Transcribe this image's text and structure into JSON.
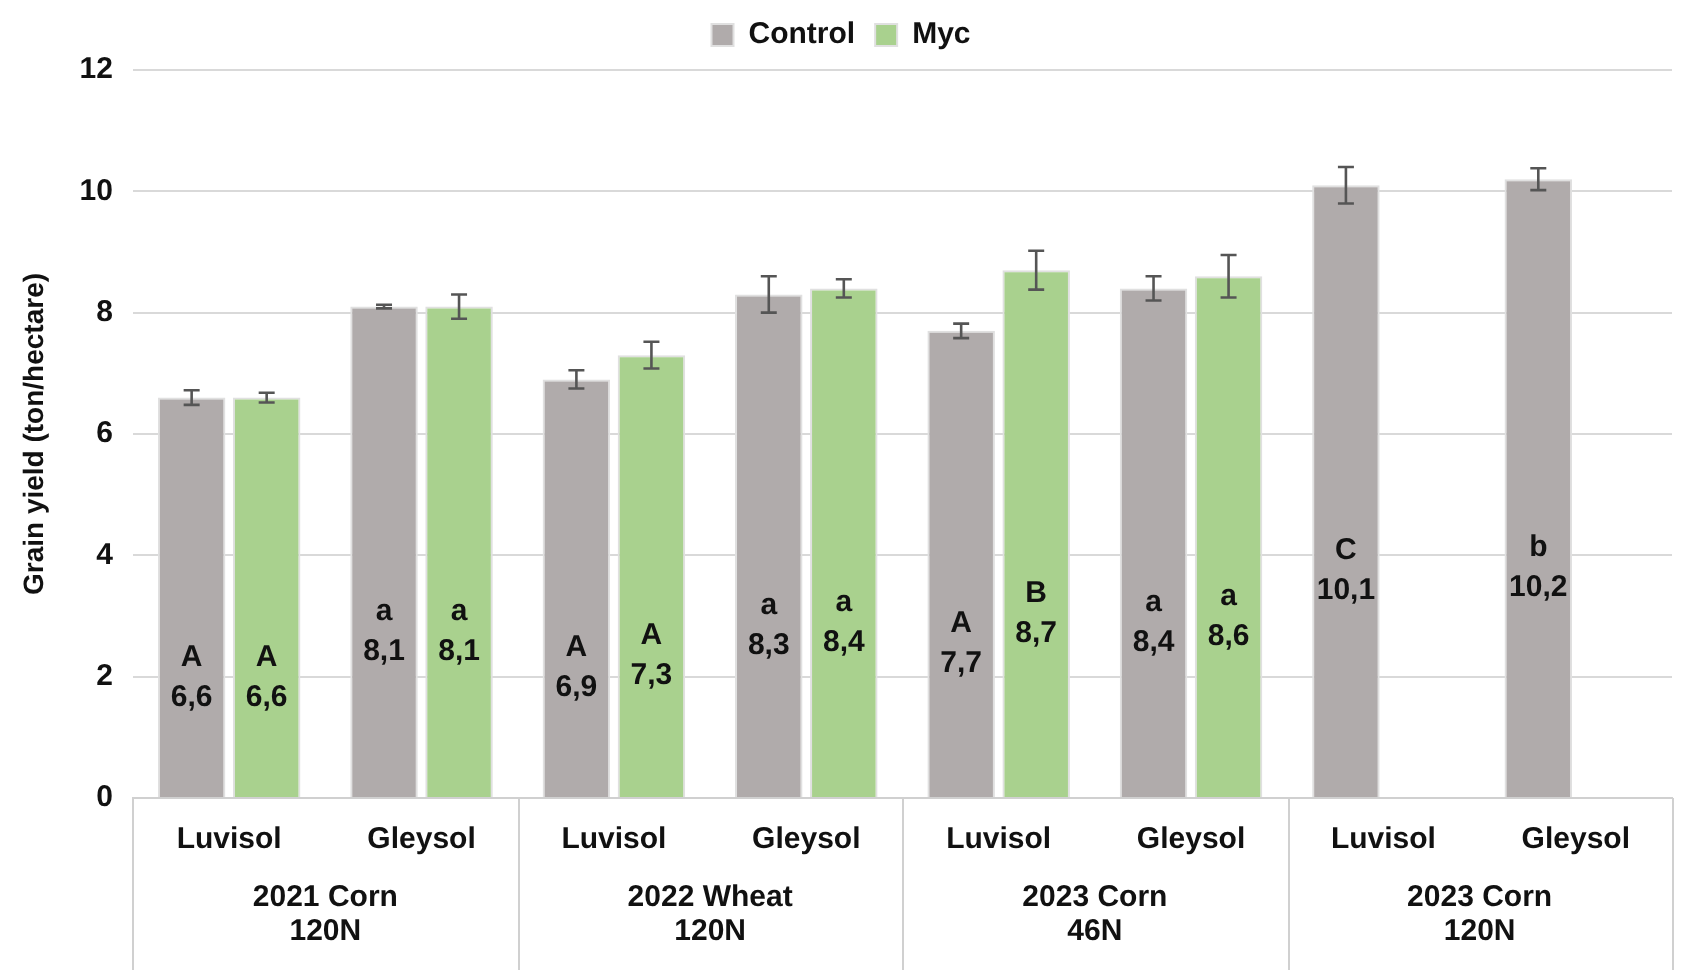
{
  "chart_data": {
    "type": "bar",
    "ylabel": "Grain yield (ton/hectare)",
    "categories": [
      "Luvisol",
      "Gleysol",
      "Luvisol",
      "Gleysol",
      "Luvisol",
      "Gleysol",
      "Luvisol",
      "Gleysol"
    ],
    "series": [
      {
        "name": "Control",
        "color": "#b0abab",
        "values": [
          6.6,
          8.1,
          6.9,
          8.3,
          7.7,
          8.4,
          10.1,
          10.2
        ],
        "errors": [
          0.12,
          0.03,
          0.15,
          0.3,
          0.12,
          0.2,
          0.3,
          0.18
        ],
        "value_labels": [
          "A\n6,6",
          "a\n8,1",
          "A\n6,9",
          "a\n8,3",
          "A\n7,7",
          "a\n8,4",
          "C\n10,1",
          "b\n10,2"
        ]
      },
      {
        "name": "Myc",
        "color": "#a9d18e",
        "values": [
          6.6,
          8.1,
          7.3,
          8.4,
          8.7,
          8.6,
          null,
          null
        ],
        "errors": [
          0.08,
          0.2,
          0.22,
          0.15,
          0.32,
          0.35,
          null,
          null
        ],
        "value_labels": [
          "A\n6,6",
          "a\n8,1",
          "A\n7,3",
          "a\n8,4",
          "B\n8,7",
          "a\n8,6",
          null,
          null
        ]
      }
    ],
    "annotations": [
      "2021 Corn\n120N",
      "2022 Wheat\n120N",
      "2023 Corn\n46N",
      "2023 Corn\n120N"
    ],
    "ylim": [
      0,
      12
    ],
    "yticks": [
      0,
      2,
      4,
      6,
      8,
      10,
      12
    ],
    "grid": "y",
    "legend": "top"
  }
}
